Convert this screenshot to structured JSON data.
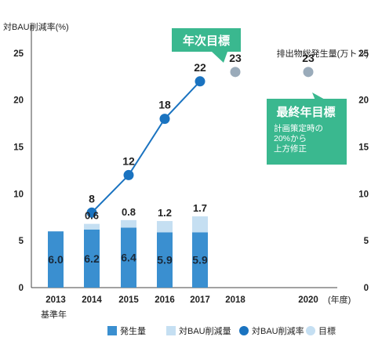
{
  "chart_data": {
    "type": "bar",
    "y_left_label": "対BAU削減率(%)",
    "y_right_label": "排出物総発生量(万トン)",
    "ylim": [
      0,
      28
    ],
    "y_ticks": [
      "0",
      "5",
      "10",
      "15",
      "20",
      "25"
    ],
    "y_tick_values": [
      0,
      5,
      10,
      15,
      20,
      25
    ],
    "categories": [
      "2013",
      "2014",
      "2015",
      "2016",
      "2017",
      "2018",
      "2020"
    ],
    "x_unit": "(年度)",
    "base_year_label": "基準年",
    "series": [
      {
        "name": "発生量",
        "kind": "bar",
        "color": "#3a8fd0",
        "values": [
          6.0,
          6.2,
          6.4,
          5.9,
          5.9,
          null,
          null
        ],
        "labels": [
          "6.0",
          "6.2",
          "6.4",
          "5.9",
          "5.9",
          "",
          ""
        ]
      },
      {
        "name": "対BAU削減量",
        "kind": "bar-stack",
        "color": "#c5dff2",
        "values": [
          null,
          0.6,
          0.8,
          1.2,
          1.7,
          null,
          null
        ],
        "labels": [
          "",
          "0.6",
          "0.8",
          "1.2",
          "1.7",
          "",
          ""
        ]
      },
      {
        "name": "対BAU削減率",
        "kind": "line",
        "color": "#1a73c0",
        "values": [
          null,
          8,
          12,
          18,
          22,
          null,
          null
        ],
        "labels": [
          "",
          "8",
          "12",
          "18",
          "22",
          "",
          ""
        ]
      },
      {
        "name": "目標",
        "kind": "target",
        "color": "#9aabba",
        "values": [
          null,
          null,
          null,
          null,
          null,
          23,
          23
        ],
        "labels": [
          "",
          "",
          "",
          "",
          "",
          "23",
          "23"
        ]
      }
    ],
    "legend": [
      "発生量",
      "対BAU削減量",
      "対BAU削減率",
      "目標"
    ],
    "legend_colors": [
      "#3a8fd0",
      "#c5dff2",
      "#1a73c0",
      "#c5dff2"
    ],
    "legend_position": "bottom-right",
    "annotations": {
      "annual_target": "年次目標",
      "final_target": "最終年目標",
      "final_target_note": [
        "計画策定時の",
        "20%から",
        "上方修正"
      ]
    },
    "annotation_color": "#3ab88f"
  }
}
